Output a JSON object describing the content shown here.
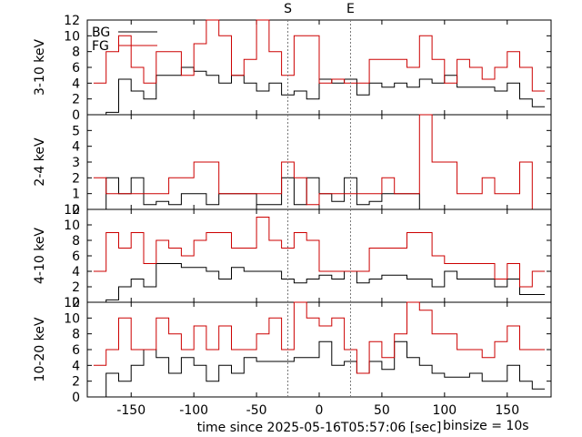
{
  "chart_data": {
    "type": "line",
    "xlabel": "time since 2025-05-16T05:57:06 [sec]",
    "xlim": [
      -185,
      185
    ],
    "x_ticks": [
      -150,
      -100,
      -50,
      0,
      50,
      100,
      150
    ],
    "annotation": "binsize = 10s",
    "markers": [
      {
        "label": "S",
        "x": -25
      },
      {
        "label": "E",
        "x": 25
      }
    ],
    "legend": {
      "placement": "top-left",
      "entries": [
        {
          "name": "BG",
          "color": "#000000"
        },
        {
          "name": "FG",
          "color": "#cc0000"
        }
      ]
    },
    "panels": [
      {
        "ylabel": "3-10 keV",
        "ylim": [
          0,
          12
        ],
        "y_ticks": [
          0,
          2,
          4,
          6,
          8,
          10,
          12
        ],
        "x": [
          -175,
          -165,
          -155,
          -145,
          -135,
          -125,
          -115,
          -105,
          -95,
          -85,
          -75,
          -65,
          -55,
          -45,
          -35,
          -25,
          -15,
          -5,
          5,
          15,
          25,
          35,
          45,
          55,
          65,
          75,
          85,
          95,
          105,
          115,
          125,
          135,
          145,
          155,
          165,
          175
        ],
        "series": [
          {
            "name": "BG",
            "color": "#000000",
            "values": [
              0,
              0.3,
              4.5,
              3,
              2,
              5,
              5,
              6,
              5.5,
              5,
              4,
              5,
              4,
              3,
              4,
              2.5,
              3,
              2,
              4.5,
              4,
              4.5,
              2.5,
              4,
              3.5,
              4,
              3.5,
              4.5,
              4,
              5,
              3.5,
              3.5,
              3.5,
              3,
              4,
              2,
              1
            ]
          },
          {
            "name": "FG",
            "color": "#cc0000",
            "values": [
              4,
              8,
              10,
              6,
              4,
              8,
              8,
              5,
              9,
              12,
              10,
              5,
              7,
              12,
              8,
              5,
              10,
              10,
              4,
              4.5,
              4,
              4,
              7,
              7,
              7,
              6,
              10,
              7,
              4,
              7,
              6,
              4.5,
              6,
              8,
              6,
              3
            ]
          }
        ]
      },
      {
        "ylabel": "2-4 keV",
        "ylim": [
          0,
          6
        ],
        "y_ticks": [
          0,
          1,
          2,
          3,
          4,
          5
        ],
        "x": [
          -175,
          -165,
          -155,
          -145,
          -135,
          -125,
          -115,
          -105,
          -95,
          -85,
          -75,
          -65,
          -55,
          -45,
          -35,
          -25,
          -15,
          -5,
          5,
          15,
          25,
          35,
          45,
          55,
          65,
          75,
          85,
          95,
          105,
          115,
          125,
          135,
          145,
          155,
          165,
          175
        ],
        "series": [
          {
            "name": "BG",
            "color": "#000000",
            "values": [
              0,
              2,
              1,
              2,
              0.3,
              0.5,
              0.3,
              1,
              1,
              0.3,
              1,
              1,
              1,
              0.3,
              0.3,
              2,
              0.3,
              2,
              1,
              0.5,
              2,
              0.3,
              0.5,
              1,
              1,
              1,
              0,
              0,
              0,
              0,
              0,
              0,
              0,
              0,
              0,
              0
            ]
          },
          {
            "name": "FG",
            "color": "#cc0000",
            "values": [
              2,
              1,
              1,
              1,
              1,
              1,
              2,
              2,
              3,
              3,
              1,
              1,
              1,
              1,
              1,
              3,
              2,
              0.3,
              1,
              1,
              1,
              1,
              1,
              2,
              1,
              1,
              6,
              3,
              3,
              1,
              1,
              2,
              1,
              1,
              3,
              0
            ]
          }
        ]
      },
      {
        "ylabel": "4-10 keV",
        "ylim": [
          0,
          12
        ],
        "y_ticks": [
          0,
          2,
          4,
          6,
          8,
          10,
          12
        ],
        "x": [
          -175,
          -165,
          -155,
          -145,
          -135,
          -125,
          -115,
          -105,
          -95,
          -85,
          -75,
          -65,
          -55,
          -45,
          -35,
          -25,
          -15,
          -5,
          5,
          15,
          25,
          35,
          45,
          55,
          65,
          75,
          85,
          95,
          105,
          115,
          125,
          135,
          145,
          155,
          165,
          175
        ],
        "series": [
          {
            "name": "BG",
            "color": "#000000",
            "values": [
              0,
              0.3,
              2,
              3,
              2,
              5,
              5,
              4.5,
              4.5,
              4,
              3,
              4.5,
              4,
              4,
              4,
              3,
              2.5,
              3,
              3.5,
              3,
              4,
              2.5,
              3,
              3.5,
              3.5,
              3,
              3,
              2,
              4,
              3,
              3,
              3,
              2,
              3,
              1,
              1
            ]
          },
          {
            "name": "FG",
            "color": "#cc0000",
            "values": [
              4,
              9,
              7,
              9,
              5,
              8,
              7,
              6,
              8,
              9,
              9,
              7,
              7,
              11,
              8,
              7,
              9,
              8,
              4,
              4,
              4,
              4,
              7,
              7,
              7,
              9,
              9,
              6,
              5,
              5,
              5,
              5,
              3,
              5,
              2,
              4
            ]
          }
        ]
      },
      {
        "ylabel": "10-20 keV",
        "ylim": [
          0,
          12
        ],
        "y_ticks": [
          0,
          2,
          4,
          6,
          8,
          10,
          12
        ],
        "x": [
          -175,
          -165,
          -155,
          -145,
          -135,
          -125,
          -115,
          -105,
          -95,
          -85,
          -75,
          -65,
          -55,
          -45,
          -35,
          -25,
          -15,
          -5,
          5,
          15,
          25,
          35,
          45,
          55,
          65,
          75,
          85,
          95,
          105,
          115,
          125,
          135,
          145,
          155,
          165,
          175
        ],
        "series": [
          {
            "name": "BG",
            "color": "#000000",
            "values": [
              0,
              3,
              2,
              4,
              6,
              5,
              3,
              5,
              4,
              2,
              4,
              3,
              5,
              4.5,
              4.5,
              4.5,
              5,
              5,
              7,
              4,
              4.5,
              3,
              4.5,
              3.5,
              7,
              5,
              4,
              3,
              2.5,
              2.5,
              3,
              2,
              2,
              4,
              2,
              1
            ]
          },
          {
            "name": "FG",
            "color": "#cc0000",
            "values": [
              4,
              6,
              10,
              6,
              6,
              10,
              8,
              6,
              9,
              6,
              9,
              6,
              6,
              8,
              10,
              6,
              12,
              10,
              9,
              10,
              6,
              3,
              7,
              5,
              8,
              12,
              11,
              8,
              8,
              6,
              6,
              5,
              7,
              9,
              6,
              6
            ]
          }
        ]
      }
    ]
  }
}
